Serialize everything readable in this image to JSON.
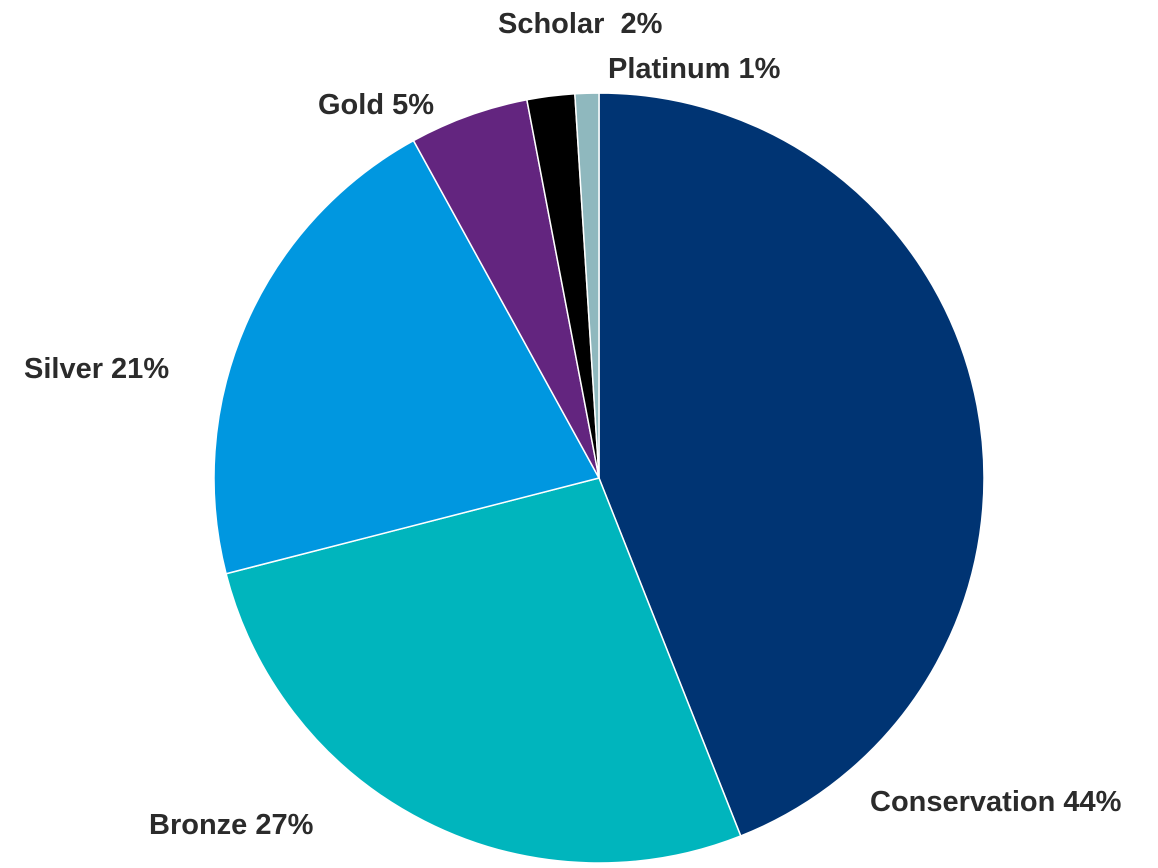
{
  "chart_data": {
    "type": "pie",
    "title": "",
    "start_angle_deg": 0,
    "direction": "clockwise",
    "slices": [
      {
        "name": "Conservation",
        "value": 44,
        "label": "Conservation 44%",
        "color": "#003473"
      },
      {
        "name": "Bronze",
        "value": 27,
        "label": "Bronze 27%",
        "color": "#00B5BD"
      },
      {
        "name": "Silver",
        "value": 21,
        "label": "Silver 21%",
        "color": "#0097E0"
      },
      {
        "name": "Gold",
        "value": 5,
        "label": "Gold 5%",
        "color": "#63257F"
      },
      {
        "name": "Scholar",
        "value": 2,
        "label": "Scholar  2%",
        "color": "#000000"
      },
      {
        "name": "Platinum",
        "value": 1,
        "label": "Platinum 1%",
        "color": "#8FB8BE"
      }
    ],
    "legend": "none"
  }
}
